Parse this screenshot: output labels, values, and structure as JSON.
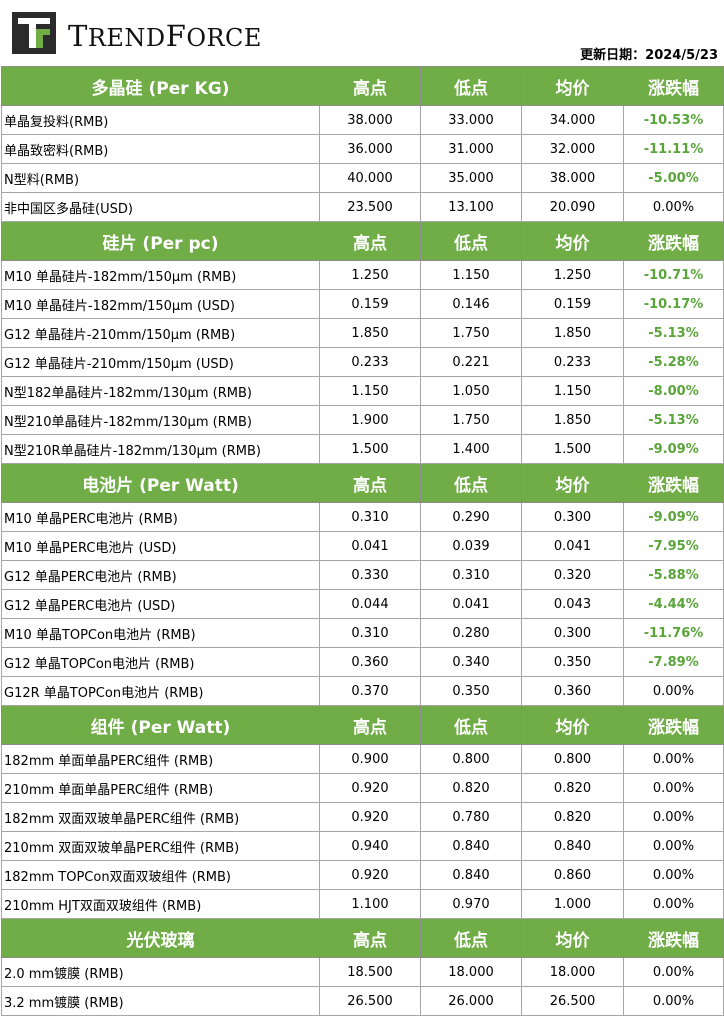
{
  "header": {
    "brand_prefix": "T",
    "brand_rest_1": "REND",
    "brand_f": "F",
    "brand_rest_2": "ORCE",
    "update_label": "更新日期：2024/5/23",
    "colors": {
      "logo_dark": "#2b2b2b",
      "logo_green": "#70ad47",
      "header_green": "#70ad47",
      "negative_green": "#5aa53a"
    }
  },
  "sections": [
    {
      "title": "多晶硅 (Per KG)",
      "cols": [
        "高点",
        "低点",
        "均价",
        "涨跌幅"
      ],
      "rows": [
        {
          "name": "单晶复投料(RMB)",
          "high": "38.000",
          "low": "33.000",
          "avg": "34.000",
          "chg": "-10.53%"
        },
        {
          "name": "单晶致密料(RMB)",
          "high": "36.000",
          "low": "31.000",
          "avg": "32.000",
          "chg": "-11.11%"
        },
        {
          "name": "N型料(RMB)",
          "high": "40.000",
          "low": "35.000",
          "avg": "38.000",
          "chg": "-5.00%"
        },
        {
          "name": "非中国区多晶硅(USD)",
          "high": "23.500",
          "low": "13.100",
          "avg": "20.090",
          "chg": "0.00%"
        }
      ]
    },
    {
      "title": "硅片 (Per pc)",
      "cols": [
        "高点",
        "低点",
        "均价",
        "涨跌幅"
      ],
      "rows": [
        {
          "name": "M10 单晶硅片-182mm/150μm (RMB)",
          "high": "1.250",
          "low": "1.150",
          "avg": "1.250",
          "chg": "-10.71%"
        },
        {
          "name": "M10 单晶硅片-182mm/150μm (USD)",
          "high": "0.159",
          "low": "0.146",
          "avg": "0.159",
          "chg": "-10.17%"
        },
        {
          "name": "G12 单晶硅片-210mm/150μm  (RMB)",
          "high": "1.850",
          "low": "1.750",
          "avg": "1.850",
          "chg": "-5.13%"
        },
        {
          "name": "G12 单晶硅片-210mm/150μm  (USD)",
          "high": "0.233",
          "low": "0.221",
          "avg": "0.233",
          "chg": "-5.28%"
        },
        {
          "name": "N型182单晶硅片-182mm/130μm (RMB)",
          "high": "1.150",
          "low": "1.050",
          "avg": "1.150",
          "chg": "-8.00%"
        },
        {
          "name": "N型210单晶硅片-182mm/130μm (RMB)",
          "high": "1.900",
          "low": "1.750",
          "avg": "1.850",
          "chg": "-5.13%"
        },
        {
          "name": "N型210R单晶硅片-182mm/130μm (RMB)",
          "high": "1.500",
          "low": "1.400",
          "avg": "1.500",
          "chg": "-9.09%"
        }
      ]
    },
    {
      "title": "电池片 (Per Watt)",
      "cols": [
        "高点",
        "低点",
        "均价",
        "涨跌幅"
      ],
      "rows": [
        {
          "name": "M10 单晶PERC电池片 (RMB)",
          "high": "0.310",
          "low": "0.290",
          "avg": "0.300",
          "chg": "-9.09%"
        },
        {
          "name": "M10 单晶PERC电池片 (USD)",
          "high": "0.041",
          "low": "0.039",
          "avg": "0.041",
          "chg": "-7.95%"
        },
        {
          "name": "G12 单晶PERC电池片 (RMB)",
          "high": "0.330",
          "low": "0.310",
          "avg": "0.320",
          "chg": "-5.88%"
        },
        {
          "name": "G12 单晶PERC电池片 (USD)",
          "high": "0.044",
          "low": "0.041",
          "avg": "0.043",
          "chg": "-4.44%"
        },
        {
          "name": "M10 单晶TOPCon电池片 (RMB)",
          "high": "0.310",
          "low": "0.280",
          "avg": "0.300",
          "chg": "-11.76%"
        },
        {
          "name": "G12 单晶TOPCon电池片 (RMB)",
          "high": "0.360",
          "low": "0.340",
          "avg": "0.350",
          "chg": "-7.89%"
        },
        {
          "name": "G12R 单晶TOPCon电池片 (RMB)",
          "high": "0.370",
          "low": "0.350",
          "avg": "0.360",
          "chg": "0.00%"
        }
      ]
    },
    {
      "title": "组件 (Per Watt)",
      "cols": [
        "高点",
        "低点",
        "均价",
        "涨跌幅"
      ],
      "rows": [
        {
          "name": "182mm 单面单晶PERC组件 (RMB)",
          "high": "0.900",
          "low": "0.800",
          "avg": "0.800",
          "chg": "0.00%"
        },
        {
          "name": "210mm 单面单晶PERC组件 (RMB)",
          "high": "0.920",
          "low": "0.820",
          "avg": "0.820",
          "chg": "0.00%"
        },
        {
          "name": "182mm 双面双玻单晶PERC组件 (RMB)",
          "high": "0.920",
          "low": "0.780",
          "avg": "0.820",
          "chg": "0.00%"
        },
        {
          "name": "210mm 双面双玻单晶PERC组件 (RMB)",
          "high": "0.940",
          "low": "0.840",
          "avg": "0.840",
          "chg": "0.00%"
        },
        {
          "name": "182mm TOPCon双面双玻组件 (RMB)",
          "high": "0.920",
          "low": "0.840",
          "avg": "0.860",
          "chg": "0.00%"
        },
        {
          "name": "210mm HJT双面双玻组件 (RMB)",
          "high": "1.100",
          "low": "0.970",
          "avg": "1.000",
          "chg": "0.00%"
        }
      ]
    },
    {
      "title": "光伏玻璃",
      "cols": [
        "高点",
        "低点",
        "均价",
        "涨跌幅"
      ],
      "rows": [
        {
          "name": "2.0 mm镀膜 (RMB)",
          "high": "18.500",
          "low": "18.000",
          "avg": "18.000",
          "chg": "0.00%"
        },
        {
          "name": "3.2 mm镀膜 (RMB)",
          "high": "26.500",
          "low": "26.000",
          "avg": "26.500",
          "chg": "0.00%"
        }
      ]
    }
  ]
}
